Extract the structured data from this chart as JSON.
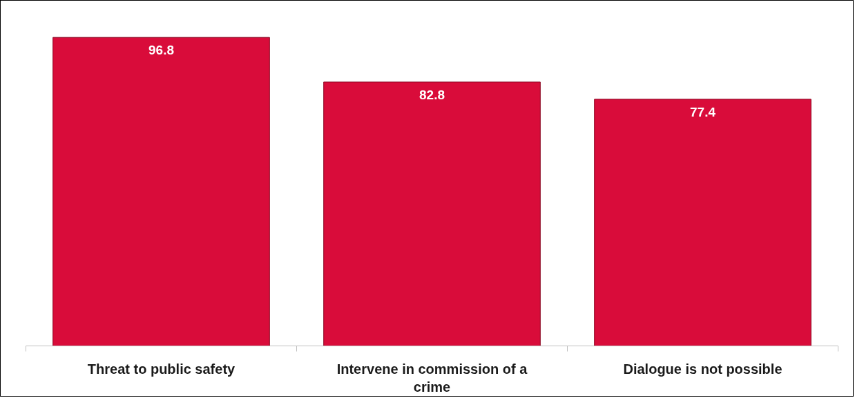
{
  "chart_data": {
    "type": "bar",
    "categories": [
      "Threat to public safety",
      "Intervene in commission of a crime",
      "Dialogue is not possible"
    ],
    "values": [
      96.8,
      82.8,
      77.4
    ],
    "color": "#d90c3a",
    "data_labels": true,
    "grid": false,
    "tick_labels": "x"
  }
}
